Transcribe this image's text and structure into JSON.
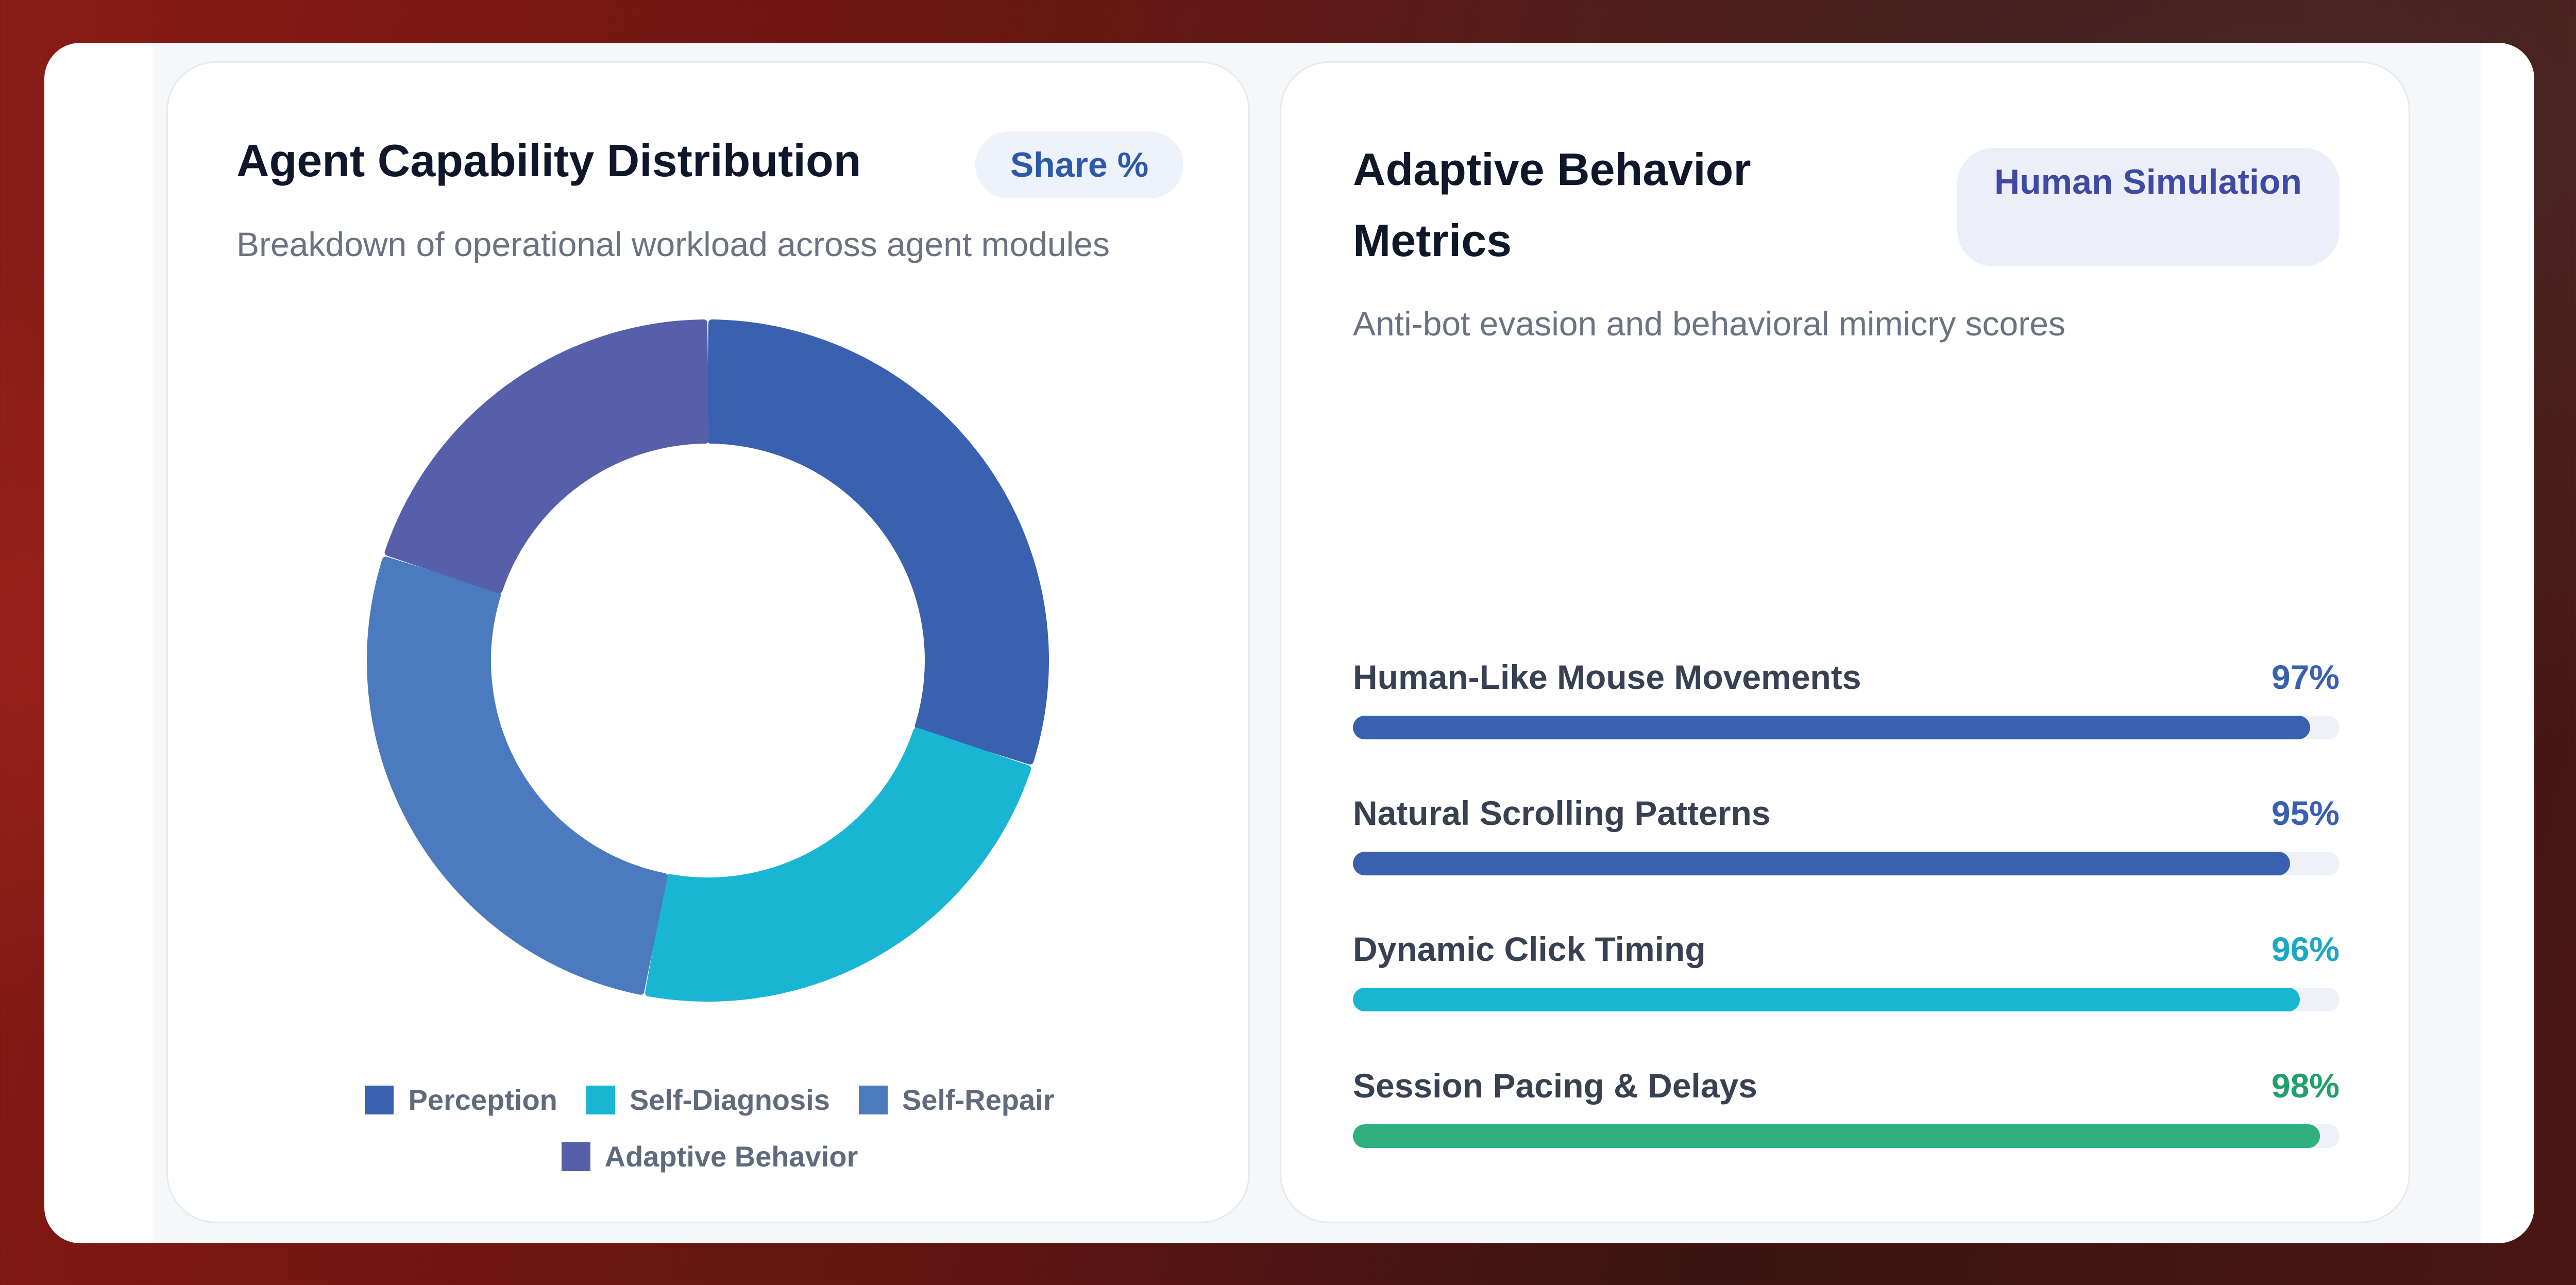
{
  "left_card": {
    "title": "Agent Capability Distribution",
    "badge": "Share %",
    "subtitle": "Breakdown of operational workload across agent modules"
  },
  "right_card": {
    "title": "Adaptive Behavior Metrics",
    "badge": "Human Simulation",
    "subtitle": "Anti-bot evasion and behavioral mimicry scores"
  },
  "chart_data": [
    {
      "type": "pie",
      "variant": "donut",
      "title": "Agent Capability Distribution",
      "subtitle": "Breakdown of operational workload across agent modules",
      "categories": [
        "Perception",
        "Self-Diagnosis",
        "Self-Repair",
        "Adaptive Behavior"
      ],
      "values": [
        30,
        23,
        27,
        20
      ],
      "colors": [
        "#3961af",
        "#19b6d4",
        "#4b7abf",
        "#5660aa"
      ],
      "legend_position": "bottom"
    },
    {
      "type": "bar",
      "orientation": "horizontal",
      "title": "Adaptive Behavior Metrics",
      "subtitle": "Anti-bot evasion and behavioral mimicry scores",
      "categories": [
        "Human-Like Mouse Movements",
        "Natural Scrolling Patterns",
        "Dynamic Click Timing",
        "Session Pacing & Delays"
      ],
      "values": [
        97,
        95,
        96,
        98
      ],
      "value_labels": [
        "97%",
        "95%",
        "96%",
        "98%"
      ],
      "colors": [
        "#3961af",
        "#3961af",
        "#19b6d4",
        "#2fb07d"
      ],
      "value_colors": [
        "#3961af",
        "#3961af",
        "#1aa8c4",
        "#21a06b"
      ],
      "xlim": [
        0,
        100
      ]
    }
  ]
}
